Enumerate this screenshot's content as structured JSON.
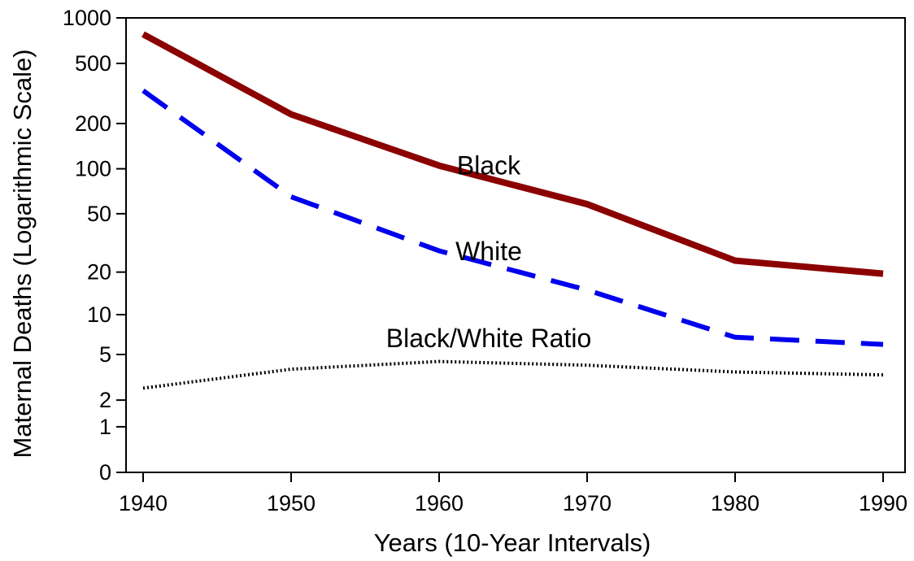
{
  "chart_data": {
    "type": "line",
    "x": [
      1940,
      1950,
      1960,
      1970,
      1980,
      1990
    ],
    "x_ticks": [
      "1940",
      "1950",
      "1960",
      "1970",
      "1980",
      "1990"
    ],
    "y_ticks": [
      {
        "value": 0,
        "label": "0"
      },
      {
        "value": 1,
        "label": "1"
      },
      {
        "value": 2,
        "label": "2"
      },
      {
        "value": 5,
        "label": "5"
      },
      {
        "value": 10,
        "label": "10"
      },
      {
        "value": 20,
        "label": "20"
      },
      {
        "value": 50,
        "label": "50"
      },
      {
        "value": 100,
        "label": "100"
      },
      {
        "value": 200,
        "label": "200"
      },
      {
        "value": 500,
        "label": "500"
      },
      {
        "value": 1000,
        "label": "1000"
      }
    ],
    "xlabel": "Years (10-Year Intervals)",
    "ylabel": "Maternal Deaths (Logarithmic Scale)",
    "yscale": "log",
    "xlim": [
      1940,
      1990
    ],
    "ylim": [
      0,
      1000
    ],
    "grid": false,
    "series": [
      {
        "name": "Black",
        "values": [
          780,
          230,
          105,
          58,
          24,
          19.5
        ],
        "color": "#8b0000",
        "style": "solid"
      },
      {
        "name": "White",
        "values": [
          330,
          65,
          28,
          15,
          6.8,
          6
        ],
        "color": "#0000ee",
        "style": "dashed"
      },
      {
        "name": "Black/White Ratio",
        "values": [
          2.6,
          3.8,
          4.4,
          4.1,
          3.6,
          3.4
        ],
        "color": "#000000",
        "style": "dotted"
      }
    ]
  }
}
